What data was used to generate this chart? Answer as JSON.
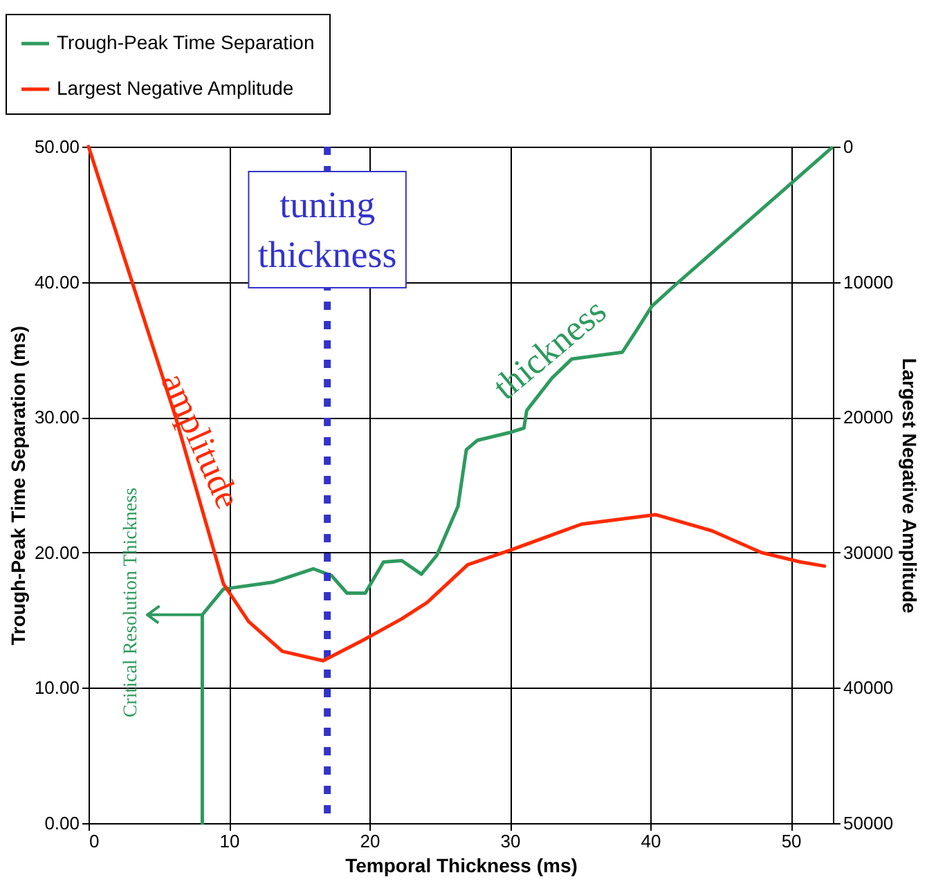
{
  "chart_data": {
    "type": "line",
    "xlabel": "Temporal Thickness (ms)",
    "ylabel": "Trough-Peak Time Separation (ms)",
    "y2label": "Largest Negative Amplitude",
    "xlim": [
      0,
      53
    ],
    "xticks": [
      0,
      10,
      20,
      30,
      40,
      50
    ],
    "ylim": [
      0,
      50
    ],
    "yticks": [
      {
        "value": 0,
        "label": "0.00"
      },
      {
        "value": 10,
        "label": "10.00"
      },
      {
        "value": 20,
        "label": "20.00"
      },
      {
        "value": 30,
        "label": "30.00"
      },
      {
        "value": 40,
        "label": "40.00"
      },
      {
        "value": 50,
        "label": "50.00"
      }
    ],
    "y2lim": [
      50000,
      0
    ],
    "y2ticks": [
      0,
      10000,
      20000,
      30000,
      40000,
      50000
    ],
    "grid": true,
    "legend": "top left",
    "marker": "none",
    "line_style": "solid",
    "series": [
      {
        "name": "Trough-Peak Time Separation",
        "color": "#2e9a5e",
        "x": [
          8.1,
          8.1,
          9.6,
          13.1,
          16,
          17.3,
          18.4,
          19.7,
          21,
          22.3,
          23.7,
          24.8,
          26.3,
          26.9,
          27.7,
          30.1,
          31,
          31.2,
          33,
          34.4,
          38,
          39,
          40.1,
          41.8,
          52.9
        ],
        "values": [
          0,
          15.4,
          17.3,
          17.8,
          18.8,
          18.3,
          17,
          17,
          19.3,
          19.4,
          18.4,
          19.8,
          23.4,
          27.6,
          28.3,
          28.9,
          29.2,
          30.5,
          32.9,
          34.3,
          34.8,
          36.4,
          38.2,
          39.8,
          49.9
        ]
      },
      {
        "name": "Largest Negative Amplitude",
        "color": "#ff2a00",
        "axis": "y2",
        "x": [
          0,
          6.2,
          9.6,
          11.4,
          13.8,
          16.7,
          19.5,
          22.3,
          24.1,
          27,
          30.1,
          35.1,
          40.4,
          44.4,
          47.9,
          50.7,
          52.4
        ],
        "values": [
          0,
          20000,
          32300,
          35100,
          37300,
          38000,
          36500,
          34900,
          33700,
          30900,
          29800,
          27900,
          27200,
          28400,
          30000,
          30700,
          31000
        ]
      }
    ],
    "ref_lines": [
      {
        "axis": "x",
        "value": 17,
        "label": "tuning thickness",
        "color": "#3333cc",
        "line_style": "dotted"
      }
    ],
    "annotations": [
      "amplitude",
      "thickness",
      {
        "text": "Critical Resolution Thickness",
        "x": 8.1,
        "y": 15.4
      }
    ]
  }
}
